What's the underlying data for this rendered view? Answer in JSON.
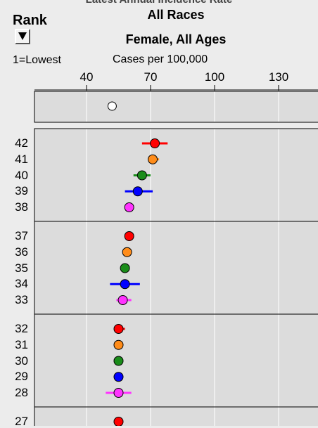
{
  "header": {
    "cut_title": "Latest Annual Incidence Rate",
    "title_lines": [
      "All Races",
      "Female, All Ages"
    ],
    "rank_label": "Rank",
    "rank_note": "1=Lowest",
    "unit_label": "Cases per 100,000"
  },
  "colors": {
    "red": "#ff0000",
    "orange": "#ff8c1a",
    "green": "#1a8c1a",
    "blue": "#0000ff",
    "magenta": "#ff33ff",
    "reference": "#ffffff",
    "panel": "#dcdcdc",
    "gridline": "#ffffff"
  },
  "chart_data": {
    "type": "scatter",
    "title": "",
    "xlabel": "Cases per 100,000",
    "xlim": [
      25,
      140
    ],
    "xticks": [
      40,
      70,
      100,
      130
    ],
    "grid": true,
    "reference_point": {
      "value": 52
    },
    "groups": [
      {
        "points": [
          {
            "rank": 42,
            "value": 72,
            "low": 66,
            "high": 78,
            "color": "red"
          },
          {
            "rank": 41,
            "value": 71,
            "low": 69,
            "high": 74,
            "color": "orange"
          },
          {
            "rank": 40,
            "value": 66,
            "low": 62,
            "high": 70,
            "color": "green"
          },
          {
            "rank": 39,
            "value": 64,
            "low": 58,
            "high": 71,
            "color": "blue"
          },
          {
            "rank": 38,
            "value": 60,
            "low": 58,
            "high": 62,
            "color": "magenta"
          }
        ]
      },
      {
        "points": [
          {
            "rank": 37,
            "value": 60,
            "low": 58,
            "high": 62,
            "color": "red"
          },
          {
            "rank": 36,
            "value": 59,
            "low": 57,
            "high": 61,
            "color": "orange"
          },
          {
            "rank": 35,
            "value": 58,
            "low": 56,
            "high": 60,
            "color": "green"
          },
          {
            "rank": 34,
            "value": 58,
            "low": 51,
            "high": 65,
            "color": "blue"
          },
          {
            "rank": 33,
            "value": 57,
            "low": 54,
            "high": 61,
            "color": "magenta"
          }
        ]
      },
      {
        "points": [
          {
            "rank": 32,
            "value": 55,
            "low": 53,
            "high": 58,
            "color": "red"
          },
          {
            "rank": 31,
            "value": 55,
            "low": 54,
            "high": 57,
            "color": "orange"
          },
          {
            "rank": 30,
            "value": 55,
            "low": 54,
            "high": 56,
            "color": "green"
          },
          {
            "rank": 29,
            "value": 55,
            "low": 54,
            "high": 56,
            "color": "blue"
          },
          {
            "rank": 28,
            "value": 55,
            "low": 49,
            "high": 61,
            "color": "magenta"
          }
        ]
      },
      {
        "points": [
          {
            "rank": 27,
            "value": 55,
            "low": 54,
            "high": 56,
            "color": "red"
          }
        ]
      }
    ]
  }
}
